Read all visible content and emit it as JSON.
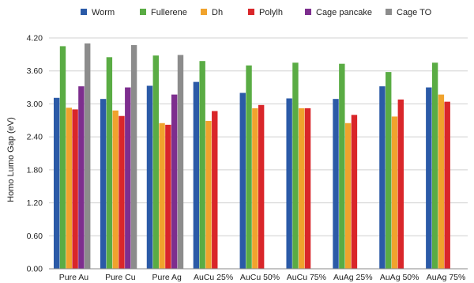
{
  "chart_data": {
    "type": "bar",
    "title": "",
    "xlabel": "",
    "ylabel": "Homo Lumo Gap  (eV)",
    "ylim": [
      0,
      4.2
    ],
    "yticks": [
      "0.00",
      "0.60",
      "1.20",
      "1.80",
      "2.40",
      "3.00",
      "3.60",
      "4.20"
    ],
    "grid": true,
    "legend_position": "top",
    "categories": [
      "Pure Au",
      "Pure Cu",
      "Pure Ag",
      "AuCu 25%",
      "AuCu 50%",
      "AuCu 75%",
      "AuAg 25%",
      "AuAg 50%",
      "AuAg 75%"
    ],
    "series": [
      {
        "name": "Worm",
        "color": "#2b5aa7",
        "values": [
          3.11,
          3.09,
          3.33,
          3.4,
          3.2,
          3.1,
          3.09,
          3.32,
          3.3
        ]
      },
      {
        "name": "Fullerene",
        "color": "#5aac44",
        "values": [
          4.05,
          3.85,
          3.88,
          3.78,
          3.7,
          3.75,
          3.73,
          3.58,
          3.75
        ]
      },
      {
        "name": "Dh",
        "color": "#f0a32d",
        "values": [
          2.93,
          2.88,
          2.65,
          2.69,
          2.92,
          2.92,
          2.65,
          2.77,
          3.17
        ]
      },
      {
        "name": "Polylh",
        "color": "#d9262a",
        "values": [
          2.9,
          2.78,
          2.62,
          2.87,
          2.98,
          2.92,
          2.8,
          3.08,
          3.04
        ]
      },
      {
        "name": "Cage pancake",
        "color": "#7d2e8e",
        "values": [
          3.32,
          3.3,
          3.17,
          null,
          null,
          null,
          null,
          null,
          null
        ]
      },
      {
        "name": "Cage TO",
        "color": "#8c8c8c",
        "values": [
          4.1,
          4.07,
          3.89,
          null,
          null,
          null,
          null,
          null,
          null
        ]
      }
    ]
  }
}
